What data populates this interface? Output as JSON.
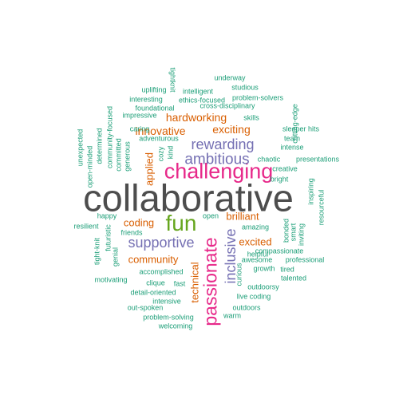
{
  "colors": {
    "gray": "#4d4d4d",
    "pink": "#e7298a",
    "green": "#66a61e",
    "purple": "#7570b3",
    "orange": "#d95f02",
    "teal": "#1b9e77"
  },
  "words": [
    {
      "text": "collaborative",
      "color": "gray"
    },
    {
      "text": "challenging",
      "color": "pink"
    },
    {
      "text": "passionate",
      "color": "pink"
    },
    {
      "text": "fun",
      "color": "green"
    },
    {
      "text": "ambitious",
      "color": "purple"
    },
    {
      "text": "rewarding",
      "color": "purple"
    },
    {
      "text": "supportive",
      "color": "purple"
    },
    {
      "text": "inclusive",
      "color": "purple"
    },
    {
      "text": "hardworking",
      "color": "orange"
    },
    {
      "text": "innovative",
      "color": "orange"
    },
    {
      "text": "exciting",
      "color": "orange"
    },
    {
      "text": "brilliant",
      "color": "orange"
    },
    {
      "text": "community",
      "color": "orange"
    },
    {
      "text": "excited",
      "color": "orange"
    },
    {
      "text": "coding",
      "color": "orange"
    },
    {
      "text": "applied",
      "color": "orange"
    },
    {
      "text": "technical",
      "color": "orange"
    },
    {
      "text": "tightknit",
      "color": "teal"
    },
    {
      "text": "underway",
      "color": "teal"
    },
    {
      "text": "studious",
      "color": "teal"
    },
    {
      "text": "uplifting",
      "color": "teal"
    },
    {
      "text": "intelligent",
      "color": "teal"
    },
    {
      "text": "interesting",
      "color": "teal"
    },
    {
      "text": "ethics-focused",
      "color": "teal"
    },
    {
      "text": "problem-solvers",
      "color": "teal"
    },
    {
      "text": "cutting-edge",
      "color": "teal"
    },
    {
      "text": "foundational",
      "color": "teal"
    },
    {
      "text": "cross-disciplinary",
      "color": "teal"
    },
    {
      "text": "impressive",
      "color": "teal"
    },
    {
      "text": "skills",
      "color": "teal"
    },
    {
      "text": "sleeper hits",
      "color": "teal"
    },
    {
      "text": "determined",
      "color": "teal"
    },
    {
      "text": "community-focused",
      "color": "teal"
    },
    {
      "text": "team",
      "color": "teal"
    },
    {
      "text": "unexpected",
      "color": "teal"
    },
    {
      "text": "open-minded",
      "color": "teal"
    },
    {
      "text": "committed",
      "color": "teal"
    },
    {
      "text": "caring",
      "color": "teal"
    },
    {
      "text": "adventurous",
      "color": "teal"
    },
    {
      "text": "intense",
      "color": "teal"
    },
    {
      "text": "generous",
      "color": "teal"
    },
    {
      "text": "cozy",
      "color": "teal"
    },
    {
      "text": "kind",
      "color": "teal"
    },
    {
      "text": "chaotic",
      "color": "teal"
    },
    {
      "text": "presentations",
      "color": "teal"
    },
    {
      "text": "creative",
      "color": "teal"
    },
    {
      "text": "bright",
      "color": "teal"
    },
    {
      "text": "inspiring",
      "color": "teal"
    },
    {
      "text": "happy",
      "color": "teal"
    },
    {
      "text": "open",
      "color": "teal"
    },
    {
      "text": "resourceful",
      "color": "teal"
    },
    {
      "text": "resilient",
      "color": "teal"
    },
    {
      "text": "futuristic",
      "color": "teal"
    },
    {
      "text": "amazing",
      "color": "teal"
    },
    {
      "text": "bonded",
      "color": "teal"
    },
    {
      "text": "smart",
      "color": "teal"
    },
    {
      "text": "friends",
      "color": "teal"
    },
    {
      "text": "tight-knit",
      "color": "teal"
    },
    {
      "text": "genial",
      "color": "teal"
    },
    {
      "text": "inviting",
      "color": "teal"
    },
    {
      "text": "compassionate",
      "color": "teal"
    },
    {
      "text": "awesome",
      "color": "teal"
    },
    {
      "text": "professional",
      "color": "teal"
    },
    {
      "text": "helpful",
      "color": "teal"
    },
    {
      "text": "accomplished",
      "color": "teal"
    },
    {
      "text": "growth",
      "color": "teal"
    },
    {
      "text": "curious",
      "color": "teal"
    },
    {
      "text": "tired",
      "color": "teal"
    },
    {
      "text": "motivating",
      "color": "teal"
    },
    {
      "text": "clique",
      "color": "teal"
    },
    {
      "text": "fast",
      "color": "teal"
    },
    {
      "text": "talented",
      "color": "teal"
    },
    {
      "text": "detail-oriented",
      "color": "teal"
    },
    {
      "text": "outdoorsy",
      "color": "teal"
    },
    {
      "text": "live coding",
      "color": "teal"
    },
    {
      "text": "intensive",
      "color": "teal"
    },
    {
      "text": "out-spoken",
      "color": "teal"
    },
    {
      "text": "outdoors",
      "color": "teal"
    },
    {
      "text": "problem-solving",
      "color": "teal"
    },
    {
      "text": "warm",
      "color": "teal"
    },
    {
      "text": "welcoming",
      "color": "teal"
    }
  ]
}
